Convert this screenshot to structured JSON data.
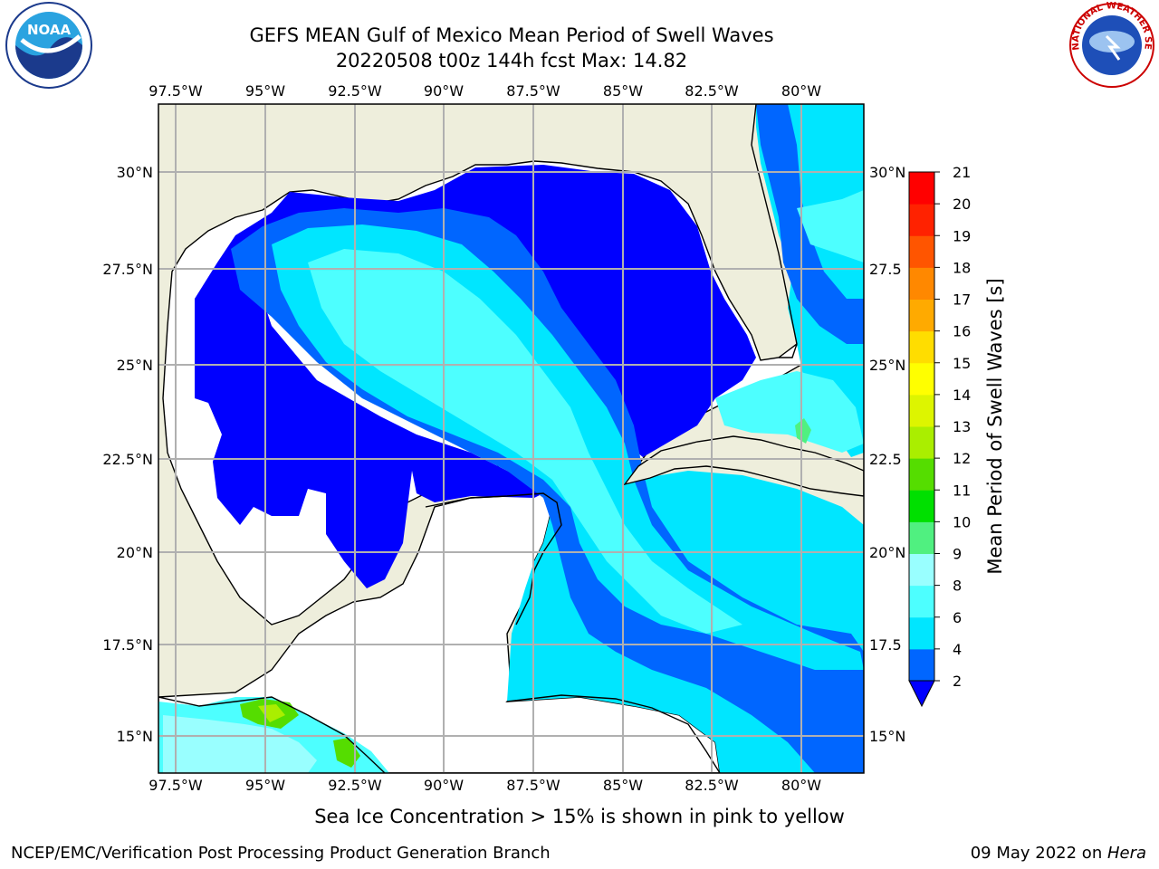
{
  "title": {
    "line1": "GEFS MEAN Gulf of Mexico Mean Period of Swell Waves",
    "line2": "20220508 t00z 144h fcst   Max: 14.82"
  },
  "map": {
    "lon_labels": [
      "97.5°W",
      "95°W",
      "92.5°W",
      "90°W",
      "87.5°W",
      "85°W",
      "82.5°W",
      "80°W"
    ],
    "lat_labels_left": [
      "30°N",
      "27.5°N",
      "25°N",
      "22.5°N",
      "20°N",
      "17.5°N",
      "15°N"
    ],
    "lat_labels_right": [
      "30°N",
      "27.5",
      "25°N",
      "22.5",
      "20°N",
      "17.5",
      "15°N"
    ],
    "gridlines": true,
    "colors": {
      "land": "#eeeedc",
      "grid": "#b0b0b0",
      "coast": "#000000"
    }
  },
  "colorbar": {
    "label": "Mean Period of Swell Waves [s]",
    "ticks": [
      "2",
      "4",
      "6",
      "8",
      "9",
      "10",
      "11",
      "12",
      "13",
      "14",
      "15",
      "16",
      "17",
      "18",
      "19",
      "20",
      "21"
    ],
    "colors": [
      "#0000ff",
      "#0066ff",
      "#00e6ff",
      "#4dffff",
      "#99ffff",
      "#50f080",
      "#00e000",
      "#55dd00",
      "#aaee00",
      "#ddf500",
      "#ffff00",
      "#ffdd00",
      "#ffaa00",
      "#ff8800",
      "#ff5500",
      "#ff2200",
      "#ff0000"
    ],
    "extend": "min"
  },
  "caption": "Sea Ice Concentration > 15% is shown in pink to yellow",
  "footer": {
    "left": "NCEP/EMC/Verification Post Processing Product Generation Branch",
    "date": "09 May 2022 on ",
    "machine": "Hera"
  },
  "logos": {
    "noaa_text": "NOAA",
    "nws_text": "NATIONAL WEATHER SERVICE"
  }
}
